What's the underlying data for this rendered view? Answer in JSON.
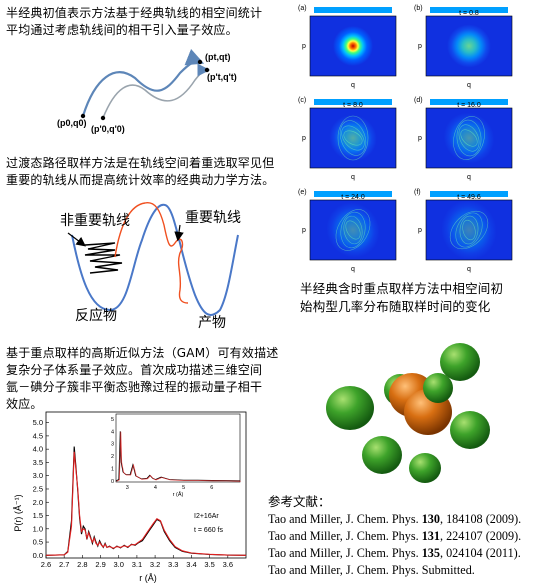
{
  "para1": {
    "line1": "半经典初值表示方法基于经典轨线的相空间统计",
    "line2": "平均通过考虑轨线间的相干引入量子效应。"
  },
  "traj_labels": {
    "p_end": "(pt,qt)",
    "p_end2": "(p't,q't)",
    "p_start": "(p0,q0)",
    "p_start2": "(p'0,q'0)"
  },
  "para2": {
    "line1": "过渡态路径取样方法是在轨线空间着重选取罕见但",
    "line2": "重要的轨线从而提高统计效率的经典动力学方法。"
  },
  "sampling_diagram": {
    "unimportant": "非重要轨线",
    "important": "重要轨线",
    "reactant": "反应物",
    "product": "产物"
  },
  "phase_panels": [
    {
      "letter": "(a)",
      "time": ""
    },
    {
      "letter": "(b)",
      "time": "t = 0.8"
    },
    {
      "letter": "(c)",
      "time": "t = 8.0"
    },
    {
      "letter": "(d)",
      "time": "t = 16.0"
    },
    {
      "letter": "(e)",
      "time": "t = 24.0"
    },
    {
      "letter": "(f)",
      "time": "t = 49.6"
    }
  ],
  "phase_axis": {
    "x": "q",
    "y": "p"
  },
  "phase_caption": {
    "line1": "半经典含时重点取样方法中相空间初",
    "line2": "始构型几率分布随取样时间的变化"
  },
  "para3": {
    "line1": "基于重点取样的高斯近似方法（GAM）可有效描述",
    "line2": "复杂分子体系量子效应。首次成功描述三维空间",
    "line3": "氩－碘分子簇非平衡态驰豫过程的振动量子相干",
    "line4": "效应。"
  },
  "references": {
    "title": "参考文献：",
    "items": [
      {
        "authors": "Tao and Miller, J. Chem. Phys. ",
        "vol": "130",
        "rest": ", 184108 (2009)."
      },
      {
        "authors": "Tao and Miller, J. Chem. Phys. ",
        "vol": "131",
        "rest": ", 224107 (2009)."
      },
      {
        "authors": "Tao and Miller, J. Chem. Phys. ",
        "vol": "135",
        "rest": ", 024104  (2011)."
      },
      {
        "authors": "Tao and Miller, J. Chem. Phys. Submitted.",
        "vol": "",
        "rest": ""
      }
    ]
  },
  "chart_data": {
    "type": "line",
    "xlabel": "r (Å)",
    "ylabel": "P(r) (Å⁻¹)",
    "xlim": [
      2.6,
      3.7
    ],
    "ylim": [
      -0.1,
      5.4
    ],
    "x_ticks": [
      "2.6",
      "2.7",
      "2.8",
      "2.9",
      "3.0",
      "3.1",
      "3.2",
      "3.3",
      "3.4",
      "3.5",
      "3.6"
    ],
    "y_ticks": [
      "0.0",
      "0.5",
      "1.0",
      "1.5",
      "2.0",
      "2.5",
      "3.0",
      "3.5",
      "4.0",
      "4.5",
      "5.0"
    ],
    "annotation_system": "I2+16Ar",
    "annotation_time": "t = 660 fs",
    "series": [
      {
        "name": "FB-IVR",
        "color": "#000000",
        "x": [
          2.6,
          2.7,
          2.72,
          2.74,
          2.755,
          2.765,
          2.775,
          2.785,
          2.795,
          2.805,
          2.815,
          2.825,
          2.835,
          2.845,
          2.855,
          2.865,
          2.875,
          2.885,
          2.895,
          2.905,
          2.915,
          2.925,
          2.935,
          2.95,
          2.97,
          2.99,
          3.01,
          3.03,
          3.05,
          3.07,
          3.09,
          3.11,
          3.13,
          3.15,
          3.17,
          3.19,
          3.21,
          3.23,
          3.25,
          3.28,
          3.31,
          3.35,
          3.4,
          3.5,
          3.6,
          3.7
        ],
        "y": [
          0.0,
          0.02,
          0.15,
          1.3,
          4.1,
          3.3,
          2.4,
          1.4,
          0.8,
          1.1,
          1.0,
          0.6,
          0.9,
          0.7,
          0.45,
          0.7,
          0.5,
          0.35,
          0.55,
          0.4,
          0.3,
          0.45,
          0.3,
          0.35,
          0.25,
          0.35,
          0.28,
          0.38,
          0.3,
          0.42,
          0.38,
          0.48,
          0.55,
          0.75,
          0.95,
          1.15,
          1.35,
          1.28,
          0.9,
          0.55,
          0.3,
          0.15,
          0.08,
          0.03,
          0.01,
          0.0
        ]
      },
      {
        "name": "GAM",
        "color": "#e02020",
        "x": [
          2.6,
          2.7,
          2.72,
          2.74,
          2.755,
          2.765,
          2.775,
          2.785,
          2.795,
          2.805,
          2.815,
          2.825,
          2.835,
          2.845,
          2.855,
          2.865,
          2.875,
          2.885,
          2.895,
          2.905,
          2.915,
          2.925,
          2.935,
          2.95,
          2.97,
          2.99,
          3.01,
          3.03,
          3.05,
          3.07,
          3.09,
          3.11,
          3.13,
          3.15,
          3.17,
          3.19,
          3.21,
          3.23,
          3.25,
          3.28,
          3.31,
          3.35,
          3.4,
          3.5,
          3.6,
          3.7
        ],
        "y": [
          0.0,
          0.02,
          0.12,
          1.1,
          3.9,
          3.2,
          2.5,
          1.5,
          0.9,
          1.0,
          0.95,
          0.65,
          0.85,
          0.65,
          0.5,
          0.65,
          0.45,
          0.38,
          0.5,
          0.38,
          0.32,
          0.42,
          0.3,
          0.33,
          0.27,
          0.33,
          0.3,
          0.36,
          0.32,
          0.4,
          0.4,
          0.5,
          0.6,
          0.8,
          1.0,
          1.2,
          1.38,
          1.3,
          0.95,
          0.6,
          0.33,
          0.17,
          0.09,
          0.04,
          0.01,
          0.0
        ]
      }
    ],
    "inset": {
      "xlim": [
        2.6,
        7.0
      ],
      "ylim": [
        -0.1,
        5.4
      ],
      "x_ticks": [
        "3",
        "4",
        "5",
        "6"
      ],
      "y_ticks": [
        "0",
        "1",
        "2",
        "3",
        "4",
        "5"
      ],
      "xlabel": "r (Å)",
      "x": [
        2.6,
        2.7,
        2.75,
        2.78,
        2.85,
        2.95,
        3.1,
        3.2,
        3.3,
        3.5,
        3.7,
        3.8,
        3.9,
        4.0,
        4.2,
        4.5,
        5.0,
        5.5,
        6.0,
        6.5,
        7.0
      ],
      "y": [
        0.0,
        0.1,
        4.0,
        1.5,
        0.7,
        0.5,
        0.5,
        1.3,
        0.4,
        0.15,
        0.2,
        0.45,
        0.2,
        0.1,
        0.3,
        0.1,
        0.05,
        0.05,
        0.03,
        0.02,
        0.0
      ]
    }
  }
}
